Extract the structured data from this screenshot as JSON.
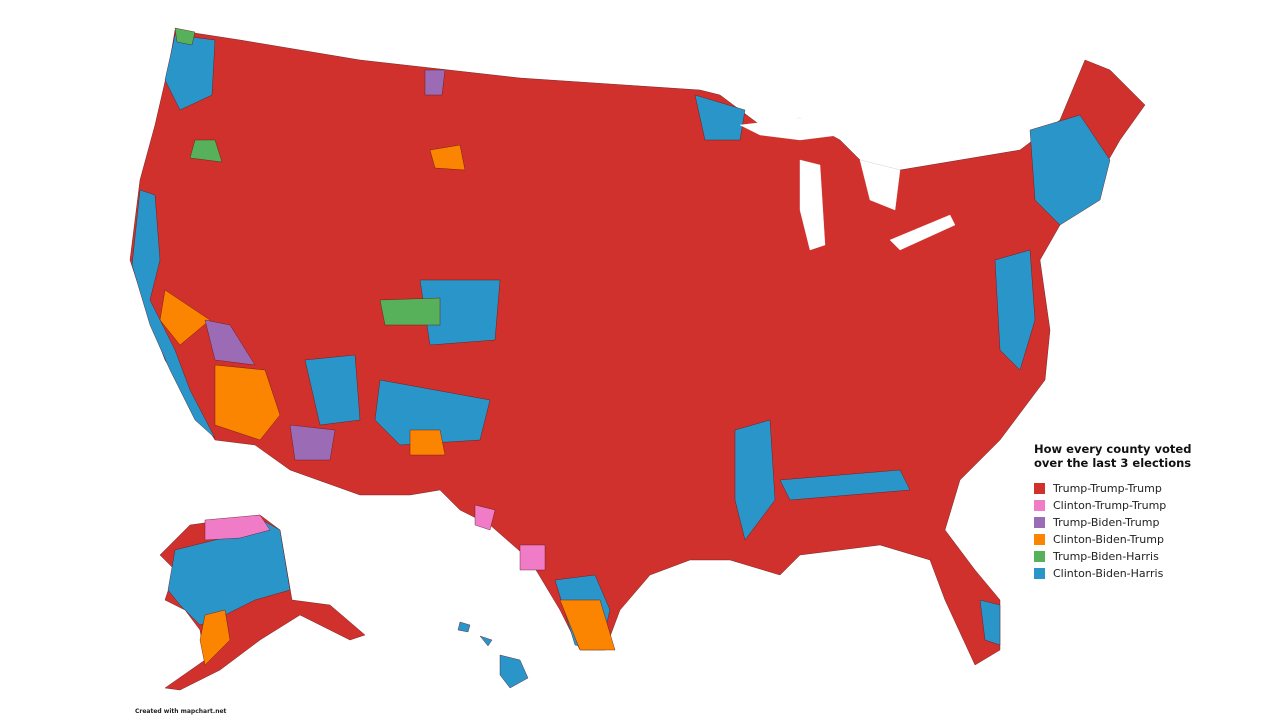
{
  "legend": {
    "title": "How every county voted over the last 3 elections",
    "items": [
      {
        "label": "Trump-Trump-Trump",
        "color": "#d0312d"
      },
      {
        "label": "Clinton-Trump-Trump",
        "color": "#f07cc8"
      },
      {
        "label": "Trump-Biden-Trump",
        "color": "#9b6cb5"
      },
      {
        "label": "Clinton-Biden-Trump",
        "color": "#fb8500"
      },
      {
        "label": "Trump-Biden-Harris",
        "color": "#57b05a"
      },
      {
        "label": "Clinton-Biden-Harris",
        "color": "#2a95c8"
      }
    ]
  },
  "credit": "Created with mapchart.net"
}
